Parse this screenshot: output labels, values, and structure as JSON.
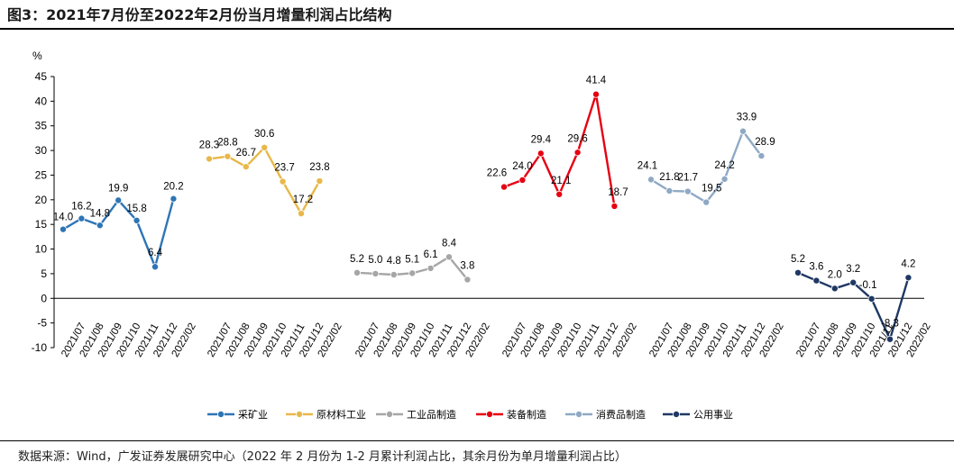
{
  "title": "图3：2021年7月份至2022年2月份当月增量利润占比结构",
  "source": "数据来源：Wind，广发证券发展研究中心（2022 年 2 月份为 1-2 月累计利润占比，其余月份为单月增量利润占比）",
  "chart_data": {
    "type": "line",
    "ylabel": "%",
    "ylim": [
      -10,
      45
    ],
    "yticks": [
      -10,
      -5,
      0,
      5,
      10,
      15,
      20,
      25,
      30,
      35,
      40,
      45
    ],
    "legend_position": "bottom",
    "categories": [
      "2021/07",
      "2021/08",
      "2021/09",
      "2021/10",
      "2021/11",
      "2021/12",
      "2022/02"
    ],
    "series": [
      {
        "name": "采矿业",
        "color": "#2e75b6",
        "values": [
          14.0,
          16.2,
          14.8,
          19.9,
          15.8,
          6.4,
          20.2
        ],
        "labels": [
          "14.0",
          "16.2",
          "14.8",
          "19.9",
          "15.8",
          "6.4",
          "20.2"
        ]
      },
      {
        "name": "原材料工业",
        "color": "#e8b84a",
        "values": [
          28.3,
          28.8,
          26.7,
          30.6,
          23.7,
          17.2,
          23.8
        ],
        "labels": [
          "28.3",
          "28.8",
          "26.7",
          "30.6",
          "23.7",
          "17.2",
          "23.8"
        ]
      },
      {
        "name": "工业品制造",
        "color": "#a6a6a6",
        "values": [
          5.2,
          5.0,
          4.8,
          5.1,
          6.1,
          8.4,
          3.8
        ],
        "labels": [
          "5.2",
          "5.0",
          "4.8",
          "5.1",
          "6.1",
          "8.4",
          "3.8"
        ]
      },
      {
        "name": "装备制造",
        "color": "#e60012",
        "values": [
          22.6,
          24.0,
          29.4,
          21.1,
          29.6,
          41.4,
          18.7
        ],
        "labels": [
          "22.6",
          "24.0",
          "29.4",
          "21.1",
          "29.6",
          "41.4",
          "18.7"
        ]
      },
      {
        "name": "消费品制造",
        "color": "#8fa9c4",
        "values": [
          24.1,
          21.8,
          21.7,
          19.5,
          24.2,
          33.9,
          28.9
        ],
        "labels": [
          "24.1",
          "21.8",
          "21.7",
          "19.5",
          "24.2",
          "33.9",
          "28.9"
        ]
      },
      {
        "name": "公用事业",
        "color": "#1f3864",
        "values": [
          5.2,
          3.6,
          2.0,
          3.2,
          -0.1,
          -8.3,
          4.2
        ],
        "labels": [
          "5.2",
          "3.6",
          "2.0",
          "3.2",
          "-0.1",
          "-8.3",
          "4.2"
        ]
      }
    ]
  }
}
